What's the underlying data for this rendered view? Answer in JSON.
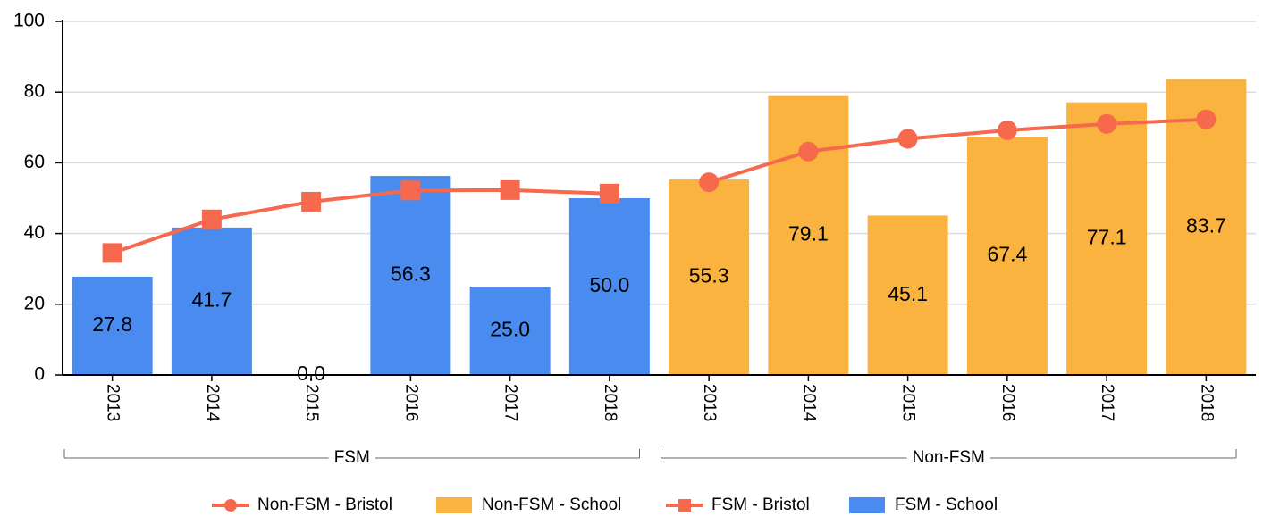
{
  "chart_data": {
    "type": "bar",
    "categories": [
      "2013",
      "2014",
      "2015",
      "2016",
      "2017",
      "2018",
      "2013",
      "2014",
      "2015",
      "2016",
      "2017",
      "2018"
    ],
    "groups": [
      "FSM",
      "Non-FSM"
    ],
    "ylim": [
      0,
      100
    ],
    "yticks": [
      0,
      20,
      40,
      60,
      80,
      100
    ],
    "grid": true,
    "legend": "bottom",
    "series": [
      {
        "name": "Non-FSM - Bristol",
        "type": "line",
        "marker": "circle",
        "color": "#f7694c",
        "values": [
          null,
          null,
          null,
          null,
          null,
          null,
          54.5,
          63.2,
          66.8,
          69.2,
          71.0,
          72.3
        ]
      },
      {
        "name": "Non-FSM - School",
        "type": "bar",
        "color": "#fbb33f",
        "values": [
          null,
          null,
          null,
          null,
          null,
          null,
          55.3,
          79.1,
          45.1,
          67.4,
          77.1,
          83.7
        ],
        "value_labels": [
          null,
          null,
          null,
          null,
          null,
          null,
          "55.3",
          "79.1",
          "45.1",
          "67.4",
          "77.1",
          "83.7"
        ]
      },
      {
        "name": "FSM - Bristol",
        "type": "line",
        "marker": "square",
        "color": "#f7694c",
        "values": [
          34.5,
          44.0,
          49.0,
          52.2,
          52.3,
          51.3,
          null,
          null,
          null,
          null,
          null,
          null
        ]
      },
      {
        "name": "FSM - School",
        "type": "bar",
        "color": "#4a8bf0",
        "values": [
          27.8,
          41.7,
          0.0,
          56.3,
          25.0,
          50.0,
          null,
          null,
          null,
          null,
          null,
          null
        ],
        "value_labels": [
          "27.8",
          "41.7",
          "0.0",
          "56.3",
          "25.0",
          "50.0",
          null,
          null,
          null,
          null,
          null,
          null
        ]
      }
    ]
  }
}
